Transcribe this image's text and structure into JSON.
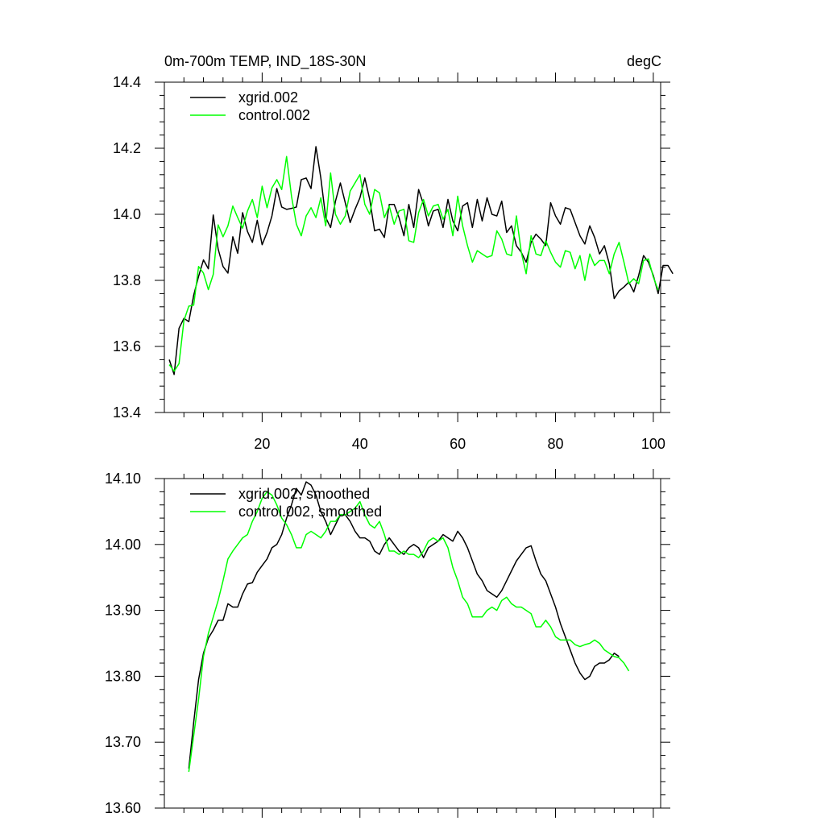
{
  "chart_data": [
    {
      "type": "line",
      "title_left": "0m-700m TEMP, IND_18S-30N",
      "title_right": "degC",
      "xlabel": "",
      "ylabel": "",
      "xlim": [
        0,
        101.5
      ],
      "ylim": [
        13.4,
        14.4
      ],
      "xticks": [
        20,
        40,
        60,
        80,
        100
      ],
      "xtick_labels": [
        "20",
        "40",
        "60",
        "80",
        "100"
      ],
      "yticks": [
        13.4,
        13.6,
        13.8,
        14.0,
        14.2,
        14.4
      ],
      "ytick_labels": [
        "13.4",
        "13.6",
        "13.8",
        "14.0",
        "14.2",
        "14.4"
      ],
      "legend_position": "top-left",
      "series": [
        {
          "name": "xgrid.002",
          "color": "#000000",
          "x_start": 1,
          "values": [
            13.56,
            13.515,
            13.655,
            13.685,
            13.675,
            13.755,
            13.812,
            13.862,
            13.835,
            13.998,
            13.895,
            13.842,
            13.822,
            13.932,
            13.882,
            14.005,
            13.948,
            13.915,
            13.982,
            13.908,
            13.945,
            13.995,
            14.078,
            14.022,
            14.015,
            14.018,
            14.022,
            14.105,
            14.11,
            14.078,
            14.205,
            14.11,
            13.99,
            13.96,
            14.04,
            14.095,
            14.035,
            13.975,
            14.015,
            14.05,
            14.11,
            14.045,
            13.95,
            13.955,
            13.93,
            14.03,
            14.03,
            13.99,
            13.935,
            14.03,
            13.96,
            14.075,
            14.03,
            13.965,
            14.01,
            14.015,
            13.96,
            14.045,
            13.98,
            13.95,
            14.025,
            14.035,
            13.96,
            14.045,
            13.98,
            14.05,
            14.0,
            13.995,
            14.04,
            13.945,
            13.965,
            13.905,
            13.885,
            13.855,
            13.915,
            13.94,
            13.925,
            13.905,
            14.035,
            13.995,
            13.97,
            14.02,
            14.015,
            13.975,
            13.935,
            13.91,
            13.965,
            13.93,
            13.88,
            13.905,
            13.85,
            13.745,
            13.768,
            13.78,
            13.795,
            13.765,
            13.815,
            13.875,
            13.855,
            13.815,
            13.76,
            13.845,
            13.845,
            13.82
          ]
        },
        {
          "name": "control.002",
          "color": "#00ff00",
          "x_start": 1,
          "values": [
            13.545,
            13.525,
            13.548,
            13.678,
            13.722,
            13.725,
            13.842,
            13.822,
            13.772,
            13.818,
            13.968,
            13.932,
            13.965,
            14.025,
            13.99,
            13.958,
            14.01,
            14.045,
            13.99,
            14.085,
            14.02,
            14.08,
            14.105,
            14.075,
            14.175,
            14.055,
            13.97,
            13.935,
            13.995,
            14.02,
            13.99,
            14.05,
            13.965,
            14.125,
            14.0,
            13.97,
            13.995,
            14.07,
            14.095,
            14.12,
            14.03,
            14.0,
            14.075,
            14.065,
            13.99,
            14.025,
            13.97,
            14.01,
            14.015,
            13.92,
            13.915,
            14.005,
            14.045,
            13.995,
            14.025,
            14.03,
            13.985,
            14.015,
            13.935,
            14.055,
            13.965,
            13.905,
            13.855,
            13.89,
            13.88,
            13.87,
            13.875,
            13.95,
            13.925,
            13.88,
            13.875,
            13.995,
            13.885,
            13.82,
            13.935,
            13.88,
            13.875,
            13.92,
            13.885,
            13.855,
            13.84,
            13.89,
            13.885,
            13.835,
            13.875,
            13.8,
            13.88,
            13.845,
            13.86,
            13.86,
            13.82,
            13.88,
            13.915,
            13.855,
            13.79,
            13.805,
            13.79,
            13.86,
            13.865,
            13.81,
            13.77
          ]
        }
      ]
    },
    {
      "type": "line",
      "title_left": "",
      "title_right": "",
      "xlabel": "",
      "ylabel": "",
      "xlim": [
        0,
        101.5
      ],
      "ylim": [
        13.6,
        14.1
      ],
      "xticks": [
        20,
        40,
        60,
        80,
        100
      ],
      "xtick_labels": [],
      "yticks": [
        13.6,
        13.7,
        13.8,
        13.9,
        14.0,
        14.1
      ],
      "ytick_labels": [
        "13.60",
        "13.70",
        "13.80",
        "13.90",
        "14.00",
        "14.10"
      ],
      "legend_position": "top-left",
      "series": [
        {
          "name": "xgrid.002, smoothed",
          "color": "#000000",
          "x_start": 5,
          "values": [
            13.66,
            13.73,
            13.795,
            13.835,
            13.858,
            13.87,
            13.885,
            13.885,
            13.91,
            13.905,
            13.905,
            13.925,
            13.94,
            13.942,
            13.958,
            13.968,
            13.978,
            13.995,
            14.0,
            14.015,
            14.04,
            14.06,
            14.085,
            14.075,
            14.095,
            14.09,
            14.075,
            14.05,
            14.035,
            14.015,
            14.03,
            14.045,
            14.045,
            14.035,
            14.02,
            14.01,
            14.01,
            14.005,
            13.99,
            13.985,
            14.0,
            14.01,
            14.0,
            13.99,
            13.985,
            13.995,
            14.0,
            13.995,
            13.98,
            13.995,
            14.0,
            14.005,
            14.015,
            14.01,
            14.005,
            14.02,
            14.01,
            13.995,
            13.975,
            13.955,
            13.945,
            13.93,
            13.925,
            13.92,
            13.93,
            13.945,
            13.96,
            13.975,
            13.985,
            13.995,
            13.998,
            13.975,
            13.955,
            13.945,
            13.925,
            13.905,
            13.88,
            13.86,
            13.84,
            13.82,
            13.805,
            13.795,
            13.8,
            13.815,
            13.82,
            13.82,
            13.825,
            13.835,
            13.83
          ]
        },
        {
          "name": "control.002, smoothed",
          "color": "#00ff00",
          "x_start": 5,
          "values": [
            13.655,
            13.71,
            13.765,
            13.83,
            13.865,
            13.89,
            13.915,
            13.945,
            13.978,
            13.99,
            14.0,
            14.01,
            14.015,
            14.035,
            14.05,
            14.07,
            14.08,
            14.075,
            14.06,
            14.04,
            14.03,
            14.015,
            13.995,
            13.995,
            14.015,
            14.02,
            14.015,
            14.01,
            14.02,
            14.035,
            14.035,
            14.045,
            14.045,
            14.05,
            14.055,
            14.065,
            14.045,
            14.03,
            14.025,
            14.035,
            14.015,
            13.99,
            13.99,
            13.985,
            13.99,
            13.985,
            13.985,
            13.98,
            13.99,
            14.005,
            14.01,
            14.005,
            14.01,
            13.995,
            13.965,
            13.945,
            13.92,
            13.91,
            13.89,
            13.89,
            13.89,
            13.9,
            13.905,
            13.9,
            13.915,
            13.92,
            13.91,
            13.905,
            13.905,
            13.9,
            13.895,
            13.875,
            13.875,
            13.885,
            13.875,
            13.86,
            13.855,
            13.855,
            13.855,
            13.848,
            13.845,
            13.848,
            13.85,
            13.855,
            13.85,
            13.84,
            13.835,
            13.83,
            13.828,
            13.82,
            13.808
          ]
        }
      ]
    }
  ]
}
